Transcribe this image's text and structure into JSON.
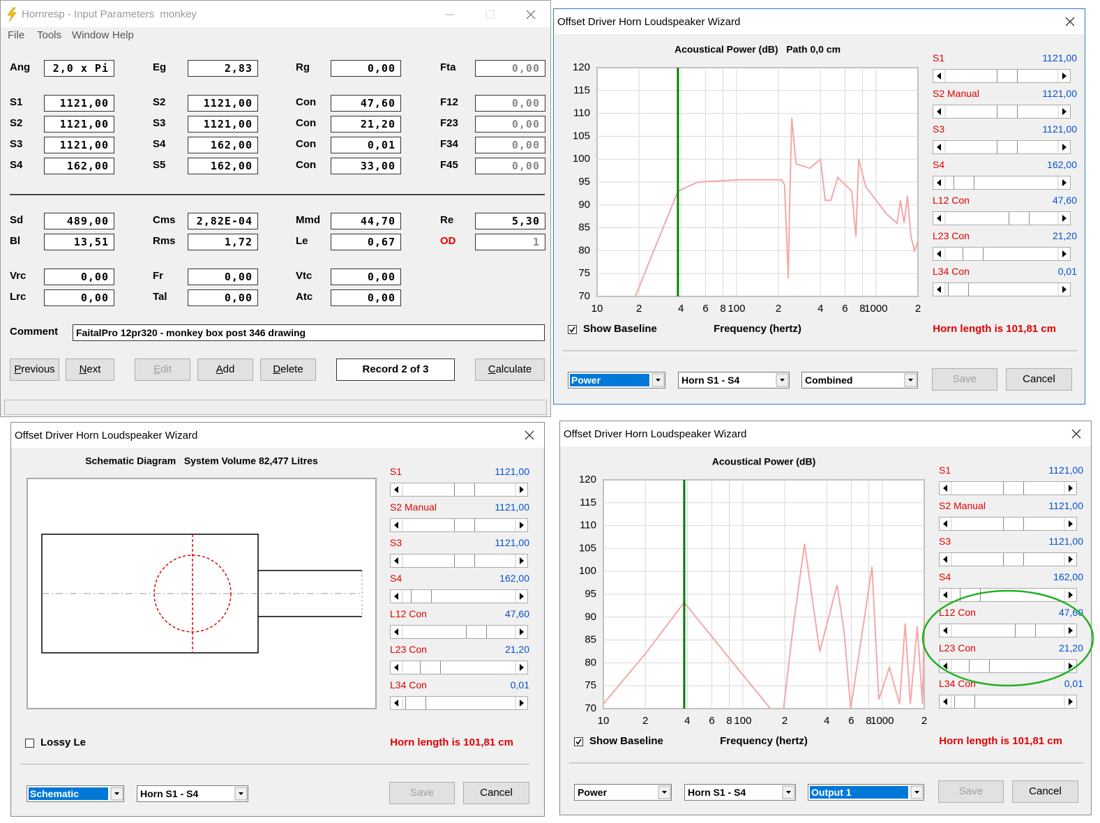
{
  "input_window": {
    "title": "Hornresp - Input Parameters  monkey",
    "menu": [
      "File",
      "Tools",
      "Window",
      "Help"
    ],
    "params": [
      [
        {
          "label": "Ang",
          "value": "2,0 x Pi"
        },
        {
          "label": "Eg",
          "value": "2,83"
        },
        {
          "label": "Rg",
          "value": "0,00"
        },
        {
          "label": "Fta",
          "value": "0,00",
          "enabled": false
        }
      ],
      [
        {
          "label": "S1",
          "value": "1121,00"
        },
        {
          "label": "S2",
          "value": "1121,00"
        },
        {
          "label": "Con",
          "value": "47,60"
        },
        {
          "label": "F12",
          "value": "0,00",
          "enabled": false
        }
      ],
      [
        {
          "label": "S2",
          "value": "1121,00"
        },
        {
          "label": "S3",
          "value": "1121,00"
        },
        {
          "label": "Con",
          "value": "21,20"
        },
        {
          "label": "F23",
          "value": "0,00",
          "enabled": false
        }
      ],
      [
        {
          "label": "S3",
          "value": "1121,00"
        },
        {
          "label": "S4",
          "value": "162,00"
        },
        {
          "label": "Con",
          "value": "0,01"
        },
        {
          "label": "F34",
          "value": "0,00",
          "enabled": false
        }
      ],
      [
        {
          "label": "S4",
          "value": "162,00"
        },
        {
          "label": "S5",
          "value": "162,00"
        },
        {
          "label": "Con",
          "value": "33,00"
        },
        {
          "label": "F45",
          "value": "0,00",
          "enabled": false
        }
      ],
      [
        {
          "label": "Sd",
          "value": "489,00"
        },
        {
          "label": "Cms",
          "value": "2,82E-04"
        },
        {
          "label": "Mmd",
          "value": "44,70"
        },
        {
          "label": "Re",
          "value": "5,30"
        }
      ],
      [
        {
          "label": "Bl",
          "value": "13,51"
        },
        {
          "label": "Rms",
          "value": "1,72"
        },
        {
          "label": "Le",
          "value": "0,67"
        },
        {
          "label": "OD",
          "value": "1",
          "label_color": "#e00000",
          "enabled": false
        }
      ],
      [
        {
          "label": "Vrc",
          "value": "0,00"
        },
        {
          "label": "Fr",
          "value": "0,00"
        },
        {
          "label": "Vtc",
          "value": "0,00"
        }
      ],
      [
        {
          "label": "Lrc",
          "value": "0,00"
        },
        {
          "label": "Tal",
          "value": "0,00"
        },
        {
          "label": "Atc",
          "value": "0,00"
        }
      ]
    ],
    "comment_label": "Comment",
    "comment": "FaitalPro 12pr320 - monkey box post 346 drawing",
    "buttons": [
      {
        "text": "Previous",
        "enabled": true
      },
      {
        "text": "Next",
        "enabled": true
      },
      {
        "text": "Edit",
        "enabled": false
      },
      {
        "text": "Add",
        "enabled": true
      },
      {
        "text": "Delete",
        "enabled": true
      },
      {
        "text": "Calculate",
        "enabled": true
      }
    ],
    "record": "Record 2 of 3"
  },
  "wizards": [
    {
      "title": "Offset Driver Horn Loudspeaker Wizard",
      "chart": {
        "type": "line",
        "title": "Acoustical Power (dB)   Path 0,0 cm",
        "x_label": "Frequency (hertz)",
        "log_x": true,
        "grid": true,
        "xlim": [
          10,
          2000
        ],
        "ylim": [
          70,
          120
        ],
        "yticks": [
          70,
          75,
          80,
          85,
          90,
          95,
          100,
          105,
          110,
          115,
          120
        ],
        "xticks": [
          10,
          {
            "value": 20,
            "label": "2"
          },
          {
            "value": 40,
            "label": "4"
          },
          {
            "value": 60,
            "label": "6"
          },
          {
            "value": 80,
            "label": "8"
          },
          100,
          {
            "value": 200,
            "label": "2"
          },
          {
            "value": 400,
            "label": "4"
          },
          {
            "value": 600,
            "label": "6"
          },
          {
            "value": 800,
            "label": "8"
          },
          1000,
          {
            "value": 2000,
            "label": "2"
          }
        ],
        "marker_x": 38,
        "marker_color": "#008000",
        "series": [
          {
            "color": "#f4a8a8",
            "x": [
              18.8,
              38,
              53,
              106,
              211,
              221,
              235,
              240,
              249,
              267,
              336,
              399,
              433,
              475,
              532,
              670,
              718,
              752,
              844,
              1003,
              1192,
              1416,
              1500,
              1590,
              1683,
              1782,
              1890,
              2000
            ],
            "values": [
              70,
              93,
              95,
              95.5,
              95.5,
              94.4,
              74,
              89,
              109,
              99,
              98,
              100,
              91,
              91,
              96,
              93,
              83,
              100,
              94,
              91,
              88,
              86,
              91,
              86,
              92,
              83,
              80,
              82
            ]
          }
        ]
      },
      "sliders": [
        {
          "label": "S1",
          "value": "1121,00"
        },
        {
          "label": "S2 Manual",
          "value": "1121,00"
        },
        {
          "label": "S3",
          "value": "1121,00"
        },
        {
          "label": "S4",
          "value": "162,00"
        },
        {
          "label": "L12 Con",
          "value": "47,60"
        },
        {
          "label": "L23 Con",
          "value": "21,20"
        },
        {
          "label": "L34 Con",
          "value": "0,01"
        }
      ],
      "checkbox": {
        "label": "Show Baseline",
        "checked": true
      },
      "horn_length": "Horn length is 101,81 cm",
      "dropdowns": [
        {
          "text": "Power",
          "selected": true
        },
        {
          "text": "Horn S1 - S4",
          "selected": false
        },
        {
          "text": "Combined",
          "selected": false
        }
      ],
      "buttons": [
        {
          "text": "Save",
          "enabled": false
        },
        {
          "text": "Cancel",
          "enabled": true
        }
      ]
    },
    {
      "title": "Offset Driver Horn Loudspeaker Wizard",
      "schematic": {
        "title": "Schematic Diagram   System Volume 82,477 Litres"
      },
      "sliders": [
        {
          "label": "S1",
          "value": "1121,00"
        },
        {
          "label": "S2 Manual",
          "value": "1121,00"
        },
        {
          "label": "S3",
          "value": "1121,00"
        },
        {
          "label": "S4",
          "value": "162,00"
        },
        {
          "label": "L12 Con",
          "value": "47,60"
        },
        {
          "label": "L23 Con",
          "value": "21,20"
        },
        {
          "label": "L34 Con",
          "value": "0,01"
        }
      ],
      "checkbox": {
        "label": "Lossy Le",
        "checked": false
      },
      "horn_length": "Horn length is 101,81 cm",
      "dropdowns": [
        {
          "text": "Schematic",
          "selected": true
        },
        {
          "text": "Horn S1 - S4",
          "selected": false
        }
      ],
      "buttons": [
        {
          "text": "Save",
          "enabled": false
        },
        {
          "text": "Cancel",
          "enabled": true
        }
      ]
    },
    {
      "title": "Offset Driver Horn Loudspeaker Wizard",
      "chart": {
        "type": "line",
        "title": "Acoustical Power (dB)",
        "x_label": "Frequency (hertz)",
        "log_x": true,
        "grid": true,
        "xlim": [
          10,
          2000
        ],
        "ylim": [
          70,
          120
        ],
        "yticks": [
          70,
          75,
          80,
          85,
          90,
          95,
          100,
          105,
          110,
          115,
          120
        ],
        "xticks": [
          10,
          {
            "value": 20,
            "label": "2"
          },
          {
            "value": 40,
            "label": "4"
          },
          {
            "value": 60,
            "label": "6"
          },
          {
            "value": 80,
            "label": "8"
          },
          100,
          {
            "value": 200,
            "label": "2"
          },
          {
            "value": 400,
            "label": "4"
          },
          {
            "value": 600,
            "label": "6"
          },
          {
            "value": 800,
            "label": "8"
          },
          1000,
          {
            "value": 2000,
            "label": "2"
          }
        ],
        "marker_x": 38,
        "marker_color": "#008000",
        "series": [
          {
            "color": "#f4a8a8",
            "x": [
              10,
              20,
              38,
              80,
              158,
              175,
              196,
              230,
              277,
              356,
              474,
              532,
              594,
              735,
              844,
              945,
              1124,
              1331,
              1460,
              1590,
              1782,
              1943,
              2000
            ],
            "values": [
              71,
              82,
              93.2,
              81,
              70,
              null,
              70,
              88,
              106,
              82.5,
              97,
              87,
              70,
              88.6,
              101,
              72,
              79,
              71,
              88.6,
              71,
              88,
              71,
              90
            ]
          }
        ]
      },
      "sliders": [
        {
          "label": "S1",
          "value": "1121,00"
        },
        {
          "label": "S2 Manual",
          "value": "1121,00"
        },
        {
          "label": "S3",
          "value": "1121,00"
        },
        {
          "label": "S4",
          "value": "162,00"
        },
        {
          "label": "L12 Con",
          "value": "47,60"
        },
        {
          "label": "L23 Con",
          "value": "21,20"
        },
        {
          "label": "L34 Con",
          "value": "0,01"
        }
      ],
      "checkbox": {
        "label": "Show Baseline",
        "checked": true
      },
      "horn_length": "Horn length is 101,81 cm",
      "dropdowns": [
        {
          "text": "Power",
          "selected": false
        },
        {
          "text": "Horn S1 - S4",
          "selected": false
        },
        {
          "text": "Output 1",
          "selected": true
        }
      ],
      "buttons": [
        {
          "text": "Save",
          "enabled": false
        },
        {
          "text": "Cancel",
          "enabled": true
        }
      ]
    }
  ]
}
